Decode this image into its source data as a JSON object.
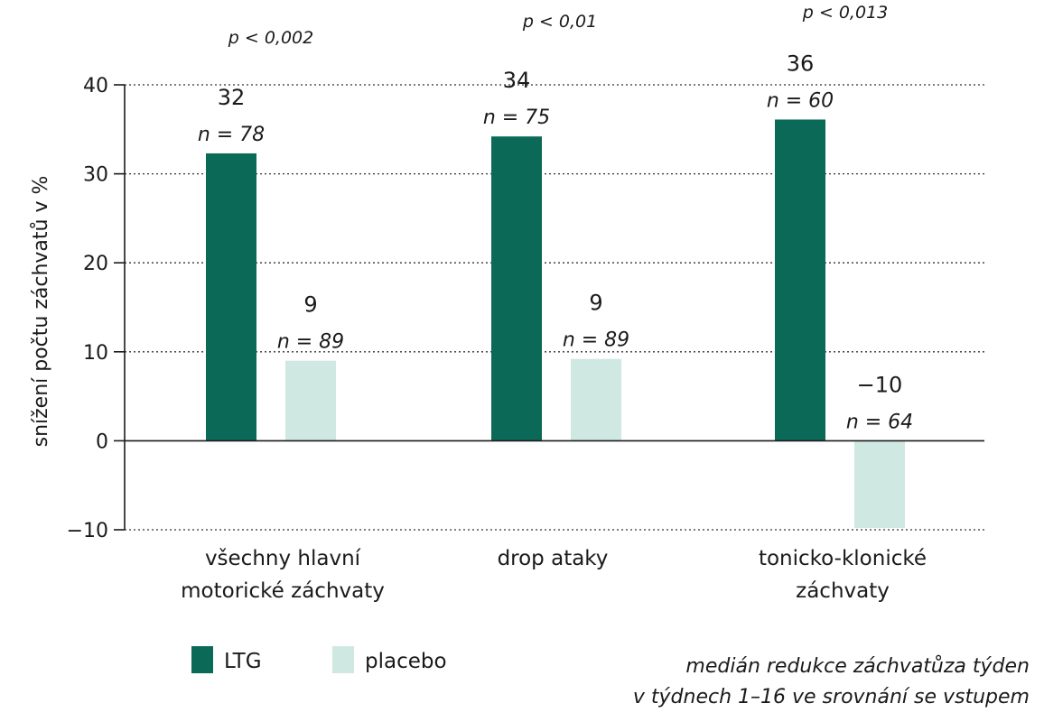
{
  "chart_data": {
    "type": "bar",
    "ylabel": "snížení počtu záchvatů v %",
    "ylim": [
      -10,
      40
    ],
    "yticks": [
      "40",
      "30",
      "20",
      "10",
      "0",
      "−10"
    ],
    "yticks_values": [
      40,
      30,
      20,
      10,
      0,
      -10
    ],
    "grid": "horizontal dotted",
    "categories": [
      [
        "všechny hlavní",
        "motorické záchvaty"
      ],
      [
        "drop ataky"
      ],
      [
        "tonicko-klonické",
        "záchvaty"
      ]
    ],
    "p_values": [
      "p < 0,002",
      "p < 0,01",
      "p < 0,013"
    ],
    "series": [
      {
        "name": "LTG",
        "color": "#0b6a57",
        "values": [
          32.3,
          34.2,
          36.1
        ],
        "value_labels": [
          "32",
          "34",
          "36"
        ],
        "n_labels": [
          "n = 78",
          "n = 75",
          "n = 60"
        ]
      },
      {
        "name": "placebo",
        "color": "#cfe9e2",
        "values": [
          9.0,
          9.2,
          -9.8
        ],
        "value_labels": [
          "9",
          "9",
          "−10"
        ],
        "n_labels": [
          "n = 89",
          "n = 89",
          "n = 64"
        ]
      }
    ],
    "legend_position": "bottom-left",
    "note": [
      "medián redukce záchvatůza týden",
      "v týdnech 1–16 ve srovnání se vstupem"
    ]
  }
}
